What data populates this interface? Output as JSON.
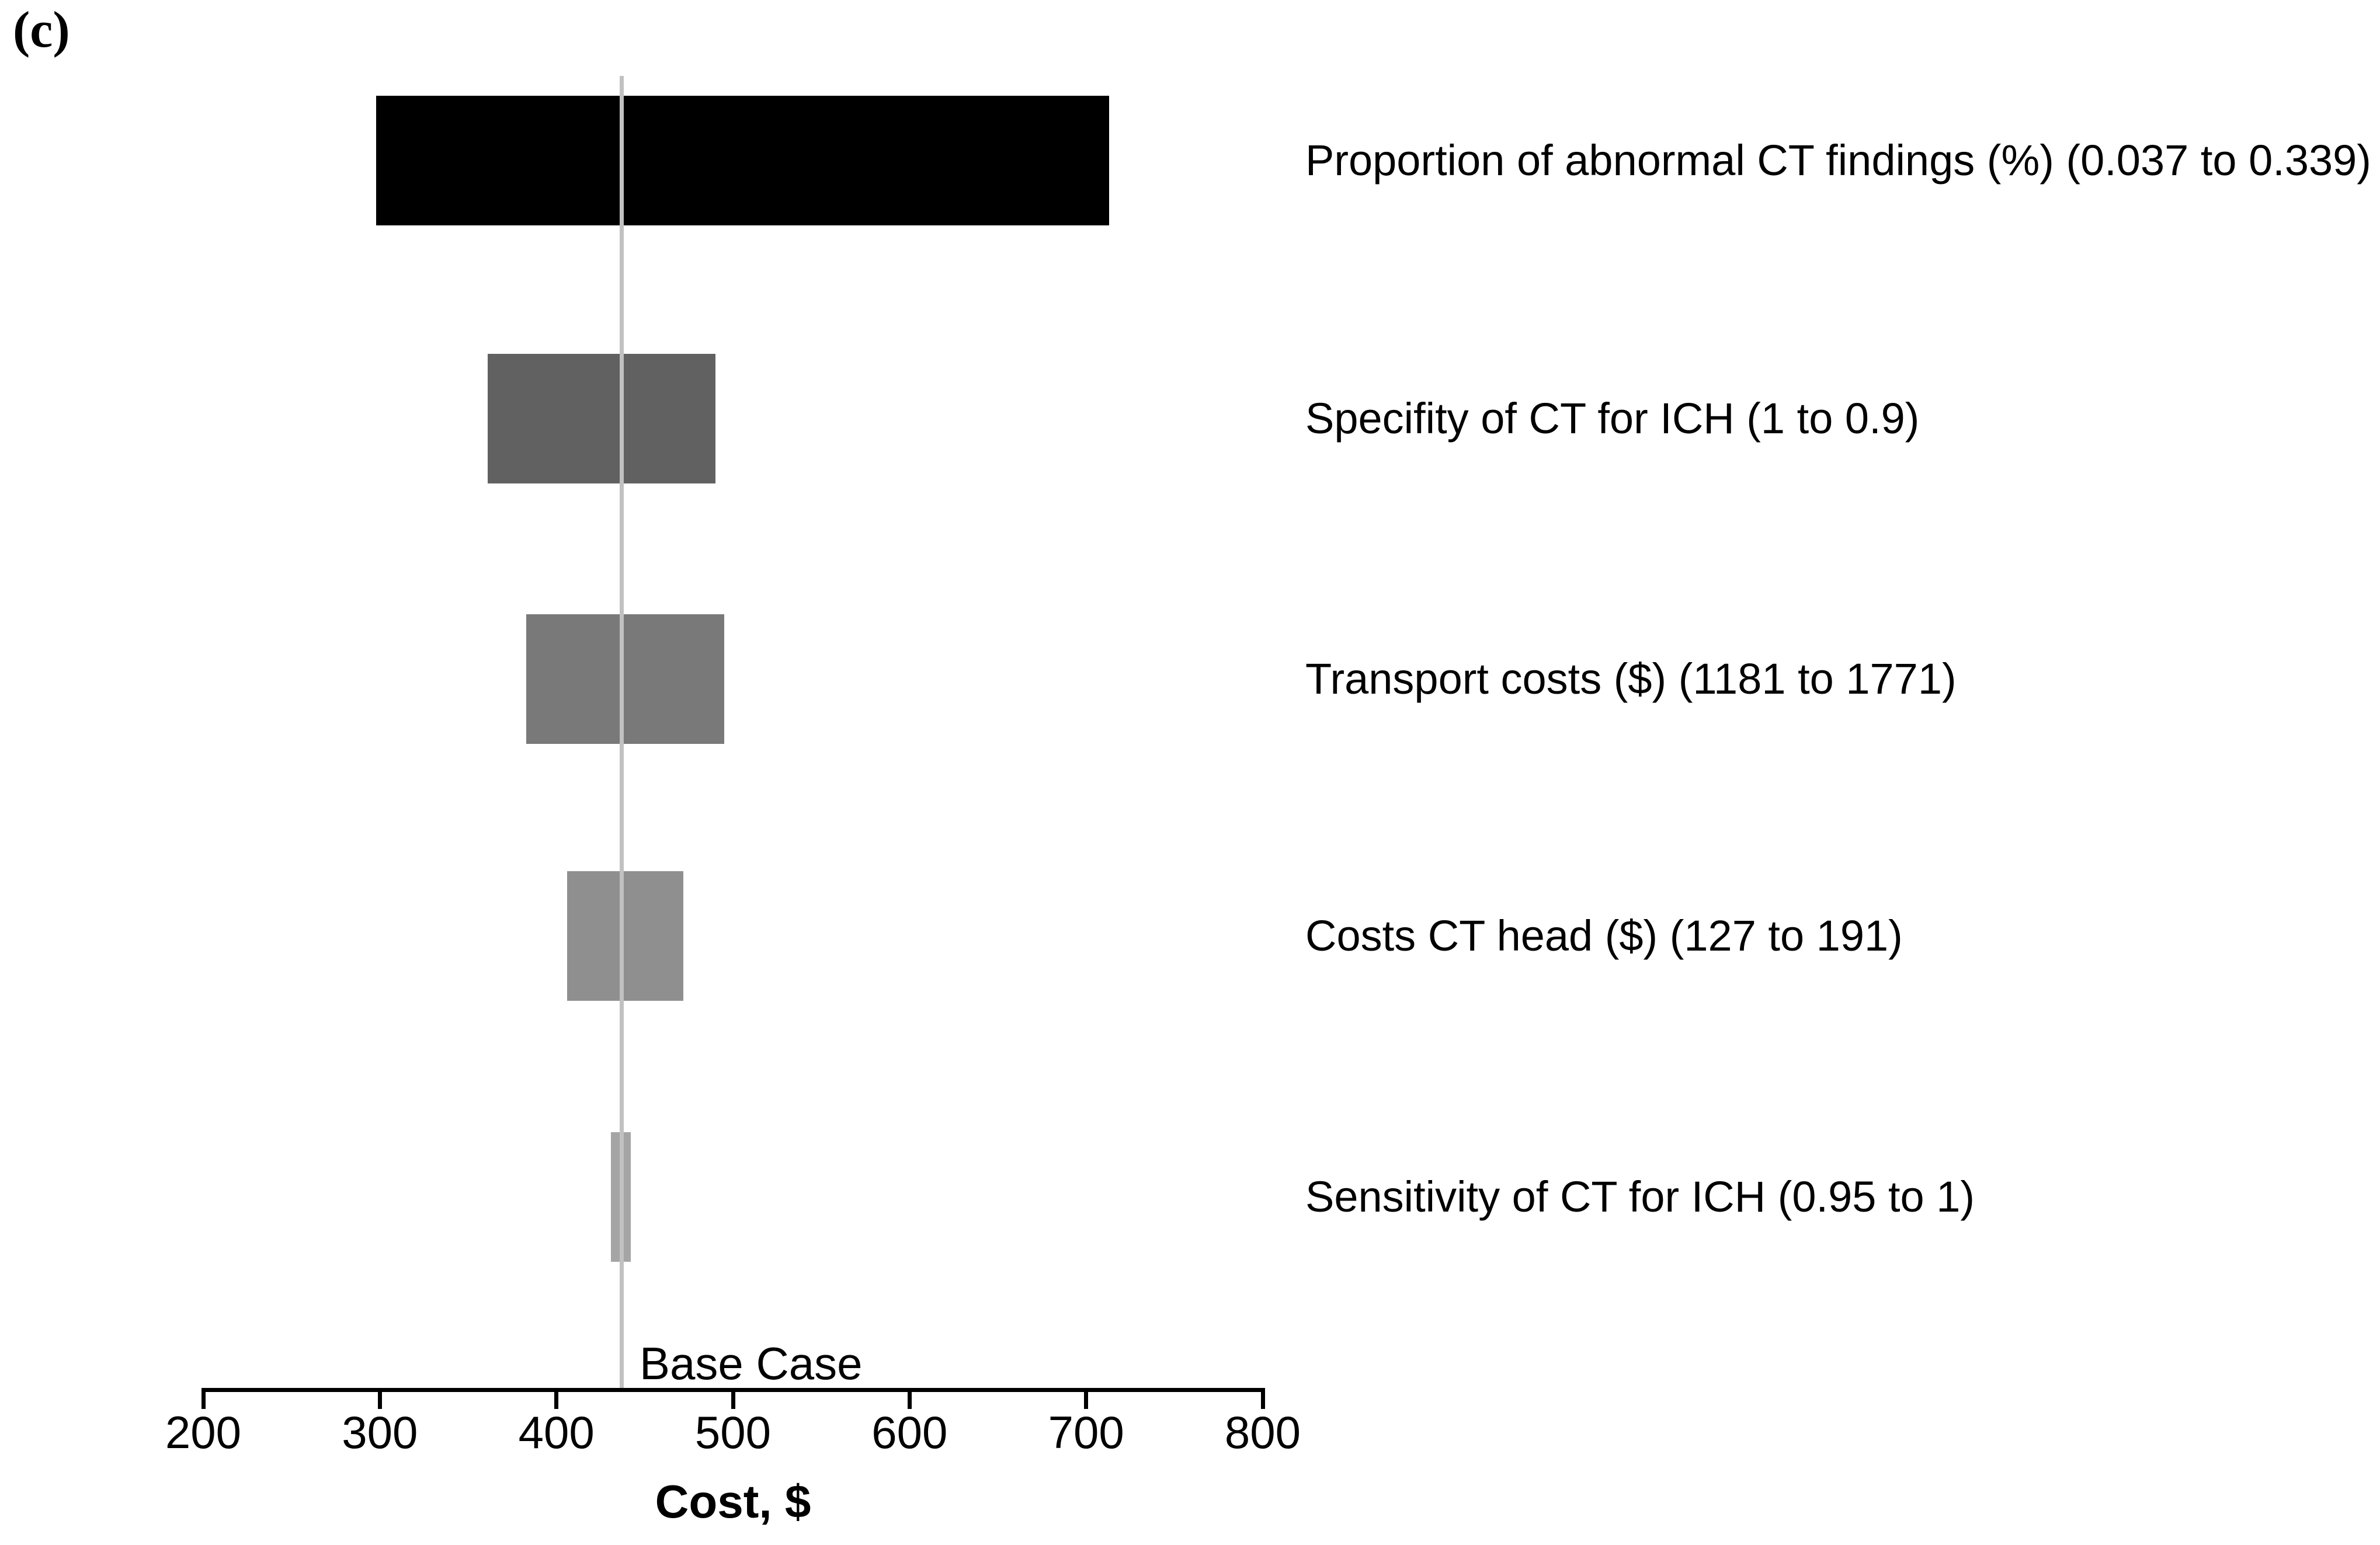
{
  "figure": {
    "panel_label": "(c)"
  },
  "chart_data": {
    "type": "bar",
    "variant": "tornado-diagram",
    "title": "",
    "xlabel": "Cost, $",
    "ylabel": "",
    "xlim": [
      200,
      800
    ],
    "xticks": [
      200,
      300,
      400,
      500,
      600,
      700,
      800
    ],
    "grid": false,
    "legend": null,
    "base_case": {
      "label": "Base Case",
      "value": 437,
      "line_color": "#c1c1c1"
    },
    "bars": [
      {
        "label": "Proportion of abnormal CT findings (%) (0.037 to 0.339)",
        "low": 298,
        "high": 713,
        "color": "#000000"
      },
      {
        "label": "Specifity of CT for ICH (1 to 0.9)",
        "low": 361,
        "high": 490,
        "color": "#616161"
      },
      {
        "label": "Transport costs ($) (1181 to 1771)",
        "low": 383,
        "high": 495,
        "color": "#797979"
      },
      {
        "label": "Costs CT head ($) (127 to 191)",
        "low": 406,
        "high": 472,
        "color": "#8f8f8f"
      },
      {
        "label": "Sensitivity of CT for ICH (0.95 to 1)",
        "low": 431,
        "high": 442,
        "color": "#a5a5a5"
      }
    ]
  }
}
